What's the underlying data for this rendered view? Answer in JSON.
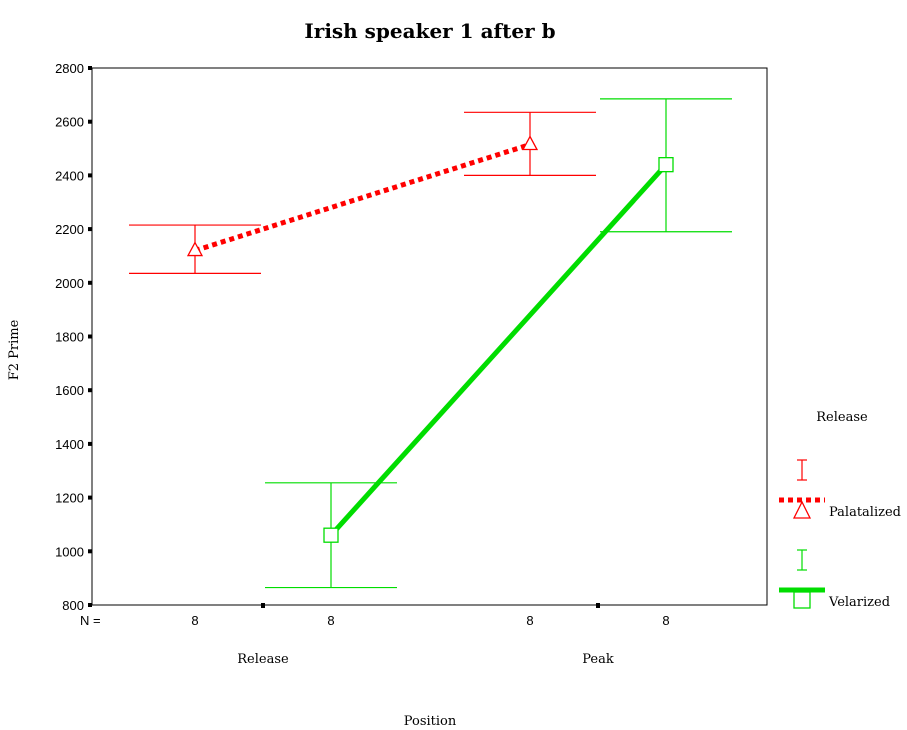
{
  "chart_data": {
    "type": "line",
    "title": "Irish speaker 1 after b",
    "xlabel": "Position",
    "ylabel": "F2 Prime",
    "ylim": [
      800,
      2800
    ],
    "yticks": [
      800,
      1000,
      1200,
      1400,
      1600,
      1800,
      2000,
      2200,
      2400,
      2600,
      2800
    ],
    "categories": [
      "Release",
      "Peak"
    ],
    "n_label": "N =",
    "legend": {
      "title": "Release",
      "placement": "right"
    },
    "grid": false,
    "series": [
      {
        "name": "Palatalized",
        "color": "#ff0000",
        "line": "dotted",
        "marker": "triangle",
        "values": [
          2120,
          2515
        ],
        "ci_low": [
          2035,
          2400
        ],
        "ci_high": [
          2215,
          2635
        ],
        "n": [
          "8",
          "8"
        ]
      },
      {
        "name": "Velarized",
        "color": "#00dd00",
        "line": "solid",
        "marker": "square",
        "values": [
          1060,
          2440
        ],
        "ci_low": [
          865,
          2190
        ],
        "ci_high": [
          1255,
          2685
        ],
        "n": [
          "8",
          "8"
        ]
      }
    ]
  }
}
